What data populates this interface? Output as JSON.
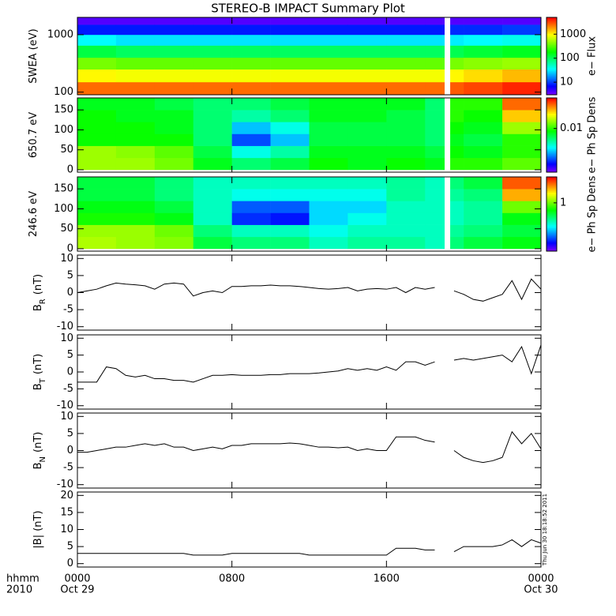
{
  "title": "STEREO-B IMPACT Summary Plot",
  "stamp": "Thu Jun 30 18:18:52 2011",
  "x_axis": {
    "xlim": [
      0,
      24
    ],
    "xticks": [
      {
        "value": 0,
        "label": "0000"
      },
      {
        "value": 8,
        "label": "0800"
      },
      {
        "value": 16,
        "label": "1600"
      },
      {
        "value": 24,
        "label": "0000"
      }
    ],
    "date_labels": [
      {
        "value": 0,
        "label": "Oct 29"
      },
      {
        "value": 24,
        "label": "Oct 30"
      }
    ],
    "time_format_label": "hhmm",
    "year_label": "2010"
  },
  "chart_data": [
    {
      "type": "heatmap",
      "ylabel": "SWEA (eV)",
      "colorbar_label": "e− Flux",
      "colormap": "rainbow",
      "ylog": true,
      "ylim": [
        90,
        2000
      ],
      "yticks": [
        100,
        1000
      ],
      "zlog": true,
      "zlim": [
        3,
        5000
      ],
      "zticks": [
        10,
        100,
        1000
      ],
      "x_edges": [
        0,
        2,
        4,
        6,
        8,
        10,
        12,
        14,
        16,
        18,
        19,
        19.3,
        20,
        22,
        24
      ],
      "y_edges": [
        90,
        150,
        250,
        400,
        650,
        1000,
        1500,
        2000
      ],
      "z": [
        [
          2500,
          1000,
          400,
          120,
          35,
          8,
          4
        ],
        [
          2500,
          900,
          350,
          100,
          30,
          8,
          4
        ],
        [
          2500,
          900,
          350,
          100,
          30,
          8,
          4
        ],
        [
          2500,
          900,
          350,
          100,
          30,
          8,
          4
        ],
        [
          2500,
          900,
          350,
          100,
          30,
          8,
          4
        ],
        [
          2500,
          900,
          350,
          100,
          30,
          8,
          4
        ],
        [
          2500,
          900,
          350,
          100,
          30,
          8,
          4
        ],
        [
          2500,
          900,
          350,
          100,
          30,
          8,
          4
        ],
        [
          2500,
          900,
          350,
          100,
          30,
          8,
          4
        ],
        [
          2500,
          900,
          350,
          100,
          30,
          8,
          4
        ],
        null,
        [
          2800,
          1000,
          400,
          110,
          32,
          9,
          4
        ],
        [
          3200,
          1200,
          450,
          130,
          35,
          9,
          4
        ],
        [
          4000,
          1500,
          500,
          150,
          40,
          10,
          4
        ]
      ]
    },
    {
      "type": "heatmap",
      "ylabel": "650.7 eV",
      "colorbar_label": "e− Ph Sp Dens",
      "colormap": "rainbow",
      "ylim": [
        -6,
        180
      ],
      "yticks": [
        0,
        50,
        100,
        150
      ],
      "zlog": true,
      "zlim": [
        0.001,
        0.05
      ],
      "zticks": [
        0.01
      ],
      "x_edges": [
        0,
        2,
        4,
        6,
        8,
        10,
        12,
        14,
        16,
        18,
        19,
        19.3,
        20,
        22,
        24
      ],
      "y_edges": [
        0,
        30,
        60,
        90,
        120,
        150,
        180
      ],
      "z": [
        [
          0.015,
          0.015,
          0.009,
          0.009,
          0.009,
          0.008
        ],
        [
          0.015,
          0.014,
          0.009,
          0.009,
          0.008,
          0.008
        ],
        [
          0.013,
          0.012,
          0.009,
          0.008,
          0.008,
          0.007
        ],
        [
          0.008,
          0.007,
          0.006,
          0.006,
          0.006,
          0.006
        ],
        [
          0.006,
          0.004,
          0.002,
          0.003,
          0.005,
          0.006
        ],
        [
          0.007,
          0.005,
          0.003,
          0.004,
          0.006,
          0.007
        ],
        [
          0.009,
          0.008,
          0.007,
          0.007,
          0.008,
          0.008
        ],
        [
          0.008,
          0.008,
          0.007,
          0.007,
          0.008,
          0.008
        ],
        [
          0.009,
          0.008,
          0.007,
          0.007,
          0.007,
          0.008
        ],
        [
          0.008,
          0.007,
          0.006,
          0.006,
          0.006,
          0.006
        ],
        null,
        [
          0.01,
          0.009,
          0.008,
          0.009,
          0.01,
          0.01
        ],
        [
          0.01,
          0.008,
          0.007,
          0.008,
          0.009,
          0.01
        ],
        [
          0.012,
          0.01,
          0.01,
          0.015,
          0.025,
          0.035
        ]
      ]
    },
    {
      "type": "heatmap",
      "ylabel": "246.6 eV",
      "colorbar_label": "e− Ph Sp Dens",
      "colormap": "rainbow",
      "ylim": [
        -6,
        180
      ],
      "yticks": [
        0,
        50,
        100,
        150
      ],
      "zlog": true,
      "zlim": [
        0.05,
        5
      ],
      "zticks": [
        1
      ],
      "x_edges": [
        0,
        2,
        4,
        6,
        8,
        10,
        12,
        14,
        16,
        18,
        19,
        19.3,
        20,
        22,
        24
      ],
      "y_edges": [
        0,
        30,
        60,
        90,
        120,
        150,
        180
      ],
      "z": [
        [
          1.3,
          1.2,
          0.7,
          0.6,
          0.5,
          0.5
        ],
        [
          1.2,
          1.2,
          0.7,
          0.6,
          0.5,
          0.5
        ],
        [
          1.1,
          1.0,
          0.6,
          0.5,
          0.4,
          0.4
        ],
        [
          0.5,
          0.4,
          0.3,
          0.3,
          0.3,
          0.3
        ],
        [
          0.4,
          0.3,
          0.1,
          0.12,
          0.25,
          0.3
        ],
        [
          0.4,
          0.3,
          0.09,
          0.12,
          0.25,
          0.3
        ],
        [
          0.3,
          0.25,
          0.2,
          0.2,
          0.25,
          0.3
        ],
        [
          0.35,
          0.3,
          0.25,
          0.2,
          0.25,
          0.3
        ],
        [
          0.35,
          0.3,
          0.3,
          0.3,
          0.35,
          0.35
        ],
        [
          0.3,
          0.3,
          0.3,
          0.3,
          0.3,
          0.3
        ],
        null,
        [
          0.4,
          0.35,
          0.3,
          0.3,
          0.35,
          0.4
        ],
        [
          0.5,
          0.4,
          0.35,
          0.35,
          0.4,
          0.5
        ],
        [
          0.6,
          0.5,
          0.6,
          1.0,
          2.5,
          3.5
        ]
      ]
    },
    {
      "type": "line",
      "ylabel": "B",
      "ylabel_sub": "R",
      "ylabel_unit": "(nT)",
      "color": "#000000",
      "ylim": [
        -11,
        11
      ],
      "yticks": [
        -10,
        -5,
        0,
        5,
        10
      ],
      "x": [
        0,
        0.5,
        1,
        1.5,
        2,
        2.5,
        3,
        3.5,
        4,
        4.5,
        5,
        5.5,
        6,
        6.5,
        7,
        7.5,
        8,
        8.5,
        9,
        9.5,
        10,
        10.5,
        11,
        11.5,
        12,
        12.5,
        13,
        13.5,
        14,
        14.5,
        15,
        15.5,
        16,
        16.5,
        17,
        17.5,
        18,
        18.5,
        19,
        19.5,
        20,
        20.5,
        21,
        21.5,
        22,
        22.5,
        23,
        23.5,
        24
      ],
      "values": [
        0,
        0.5,
        1,
        2,
        2.8,
        2.5,
        2.3,
        2,
        1,
        2.5,
        2.8,
        2.5,
        -1,
        0,
        0.5,
        0,
        1.8,
        1.8,
        2,
        2,
        2.2,
        2,
        2,
        1.8,
        1.5,
        1.2,
        1,
        1.2,
        1.5,
        0.5,
        1,
        1.2,
        1,
        1.5,
        0,
        1.5,
        1,
        1.5,
        null,
        0.5,
        -0.5,
        -2,
        -2.5,
        -1.5,
        -0.5,
        3.5,
        -2,
        4,
        1
      ]
    },
    {
      "type": "line",
      "ylabel": "B",
      "ylabel_sub": "T",
      "ylabel_unit": "(nT)",
      "color": "#000000",
      "ylim": [
        -11,
        11
      ],
      "yticks": [
        -10,
        -5,
        0,
        5,
        10
      ],
      "x": [
        0,
        0.5,
        1,
        1.5,
        2,
        2.5,
        3,
        3.5,
        4,
        4.5,
        5,
        5.5,
        6,
        6.5,
        7,
        7.5,
        8,
        8.5,
        9,
        9.5,
        10,
        10.5,
        11,
        11.5,
        12,
        12.5,
        13,
        13.5,
        14,
        14.5,
        15,
        15.5,
        16,
        16.5,
        17,
        17.5,
        18,
        18.5,
        19,
        19.5,
        20,
        20.5,
        21,
        21.5,
        22,
        22.5,
        23,
        23.5,
        24
      ],
      "values": [
        -3,
        -3,
        -3,
        1.5,
        1,
        -1,
        -1.5,
        -1,
        -2,
        -2,
        -2.5,
        -2.5,
        -3,
        -2,
        -1,
        -1,
        -0.8,
        -1,
        -1,
        -1,
        -0.8,
        -0.8,
        -0.5,
        -0.5,
        -0.5,
        -0.3,
        0,
        0.3,
        1,
        0.5,
        1,
        0.5,
        1.5,
        0.5,
        3,
        3,
        2,
        3,
        null,
        3.5,
        4,
        3.5,
        4,
        4.5,
        5,
        3,
        7.5,
        -0.5,
        8
      ]
    },
    {
      "type": "line",
      "ylabel": "B",
      "ylabel_sub": "N",
      "ylabel_unit": "(nT)",
      "color": "#000000",
      "ylim": [
        -11,
        11
      ],
      "yticks": [
        -10,
        -5,
        0,
        5,
        10
      ],
      "x": [
        0,
        0.5,
        1,
        1.5,
        2,
        2.5,
        3,
        3.5,
        4,
        4.5,
        5,
        5.5,
        6,
        6.5,
        7,
        7.5,
        8,
        8.5,
        9,
        9.5,
        10,
        10.5,
        11,
        11.5,
        12,
        12.5,
        13,
        13.5,
        14,
        14.5,
        15,
        15.5,
        16,
        16.5,
        17,
        17.5,
        18,
        18.5,
        19,
        19.5,
        20,
        20.5,
        21,
        21.5,
        22,
        22.5,
        23,
        23.5,
        24
      ],
      "values": [
        -0.5,
        -0.5,
        0,
        0.5,
        1,
        1,
        1.5,
        2,
        1.5,
        2,
        1,
        1,
        0,
        0.5,
        1,
        0.5,
        1.5,
        1.5,
        2,
        2,
        2,
        2,
        2.2,
        2,
        1.5,
        1,
        1,
        0.8,
        1,
        0,
        0.5,
        0,
        0,
        4,
        4,
        4,
        3,
        2.5,
        null,
        0,
        -2,
        -3,
        -3.5,
        -3,
        -2,
        5.5,
        2,
        5,
        0.5
      ]
    },
    {
      "type": "line",
      "ylabel": "|B| (nT)",
      "color": "#000000",
      "ylim": [
        -1,
        21
      ],
      "yticks": [
        0,
        5,
        10,
        15,
        20
      ],
      "x": [
        0,
        0.5,
        1,
        1.5,
        2,
        2.5,
        3,
        3.5,
        4,
        4.5,
        5,
        5.5,
        6,
        6.5,
        7,
        7.5,
        8,
        8.5,
        9,
        9.5,
        10,
        10.5,
        11,
        11.5,
        12,
        12.5,
        13,
        13.5,
        14,
        14.5,
        15,
        15.5,
        16,
        16.5,
        17,
        17.5,
        18,
        18.5,
        19,
        19.5,
        20,
        20.5,
        21,
        21.5,
        22,
        22.5,
        23,
        23.5,
        24
      ],
      "values": [
        3,
        3,
        3,
        3,
        3,
        3,
        3,
        3,
        3,
        3,
        3,
        3,
        2.5,
        2.5,
        2.5,
        2.5,
        3,
        3,
        3,
        3,
        3,
        3,
        3,
        3,
        2.5,
        2.5,
        2.5,
        2.5,
        2.5,
        2.5,
        2.5,
        2.5,
        2.5,
        4.5,
        4.5,
        4.5,
        4,
        4,
        null,
        3.5,
        5,
        5,
        5,
        5,
        5.5,
        7,
        5,
        7,
        6
      ]
    }
  ]
}
